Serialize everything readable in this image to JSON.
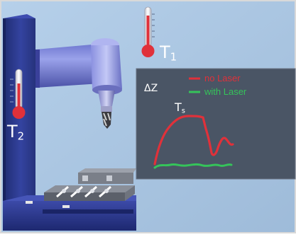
{
  "labels": {
    "t1": {
      "main": "T",
      "sub": "1"
    },
    "t2": {
      "main": "T",
      "sub": "2"
    },
    "delta_z": "ΔZ",
    "ts": {
      "main": "T",
      "sub": "s"
    }
  },
  "legend": {
    "no_laser": "no Laser",
    "with_laser": "with Laser"
  },
  "colors": {
    "background": "#aac6e2",
    "machine": "#2d3b8a",
    "panel": "#4a5565",
    "red": "#e0313a",
    "green": "#35c45a"
  },
  "icons": [
    "thermometer-icon",
    "thermometer-icon",
    "spindle-icon",
    "workpiece-fixture-icon"
  ]
}
